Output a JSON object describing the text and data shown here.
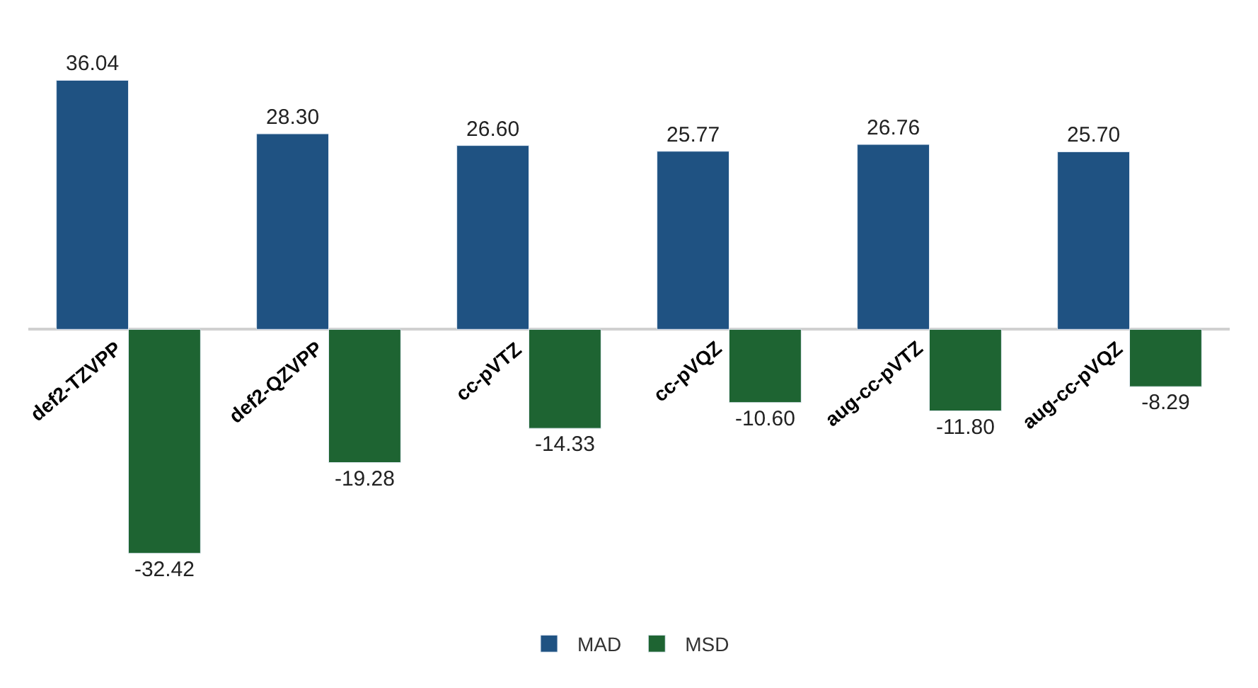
{
  "chart_data": {
    "type": "bar",
    "categories": [
      "def2-TZVPP",
      "def2-QZVPP",
      "cc-pVTZ",
      "cc-pVQZ",
      "aug-cc-pVTZ",
      "aug-cc-pVQZ"
    ],
    "series": [
      {
        "name": "MAD",
        "color": "#1f5282",
        "values": [
          36.04,
          28.3,
          26.6,
          25.77,
          26.76,
          25.7
        ],
        "value_labels": [
          "36.04",
          "28.30",
          "26.60",
          "25.77",
          "26.76",
          "25.70"
        ]
      },
      {
        "name": "MSD",
        "color": "#1e6432",
        "values": [
          -32.42,
          -19.28,
          -14.33,
          -10.6,
          -11.8,
          -8.29
        ],
        "value_labels": [
          "-32.42",
          "-19.28",
          "-14.33",
          "-10.60",
          "-11.80",
          "-8.29"
        ]
      }
    ],
    "legend": "bottom",
    "tick_labels": false
  }
}
